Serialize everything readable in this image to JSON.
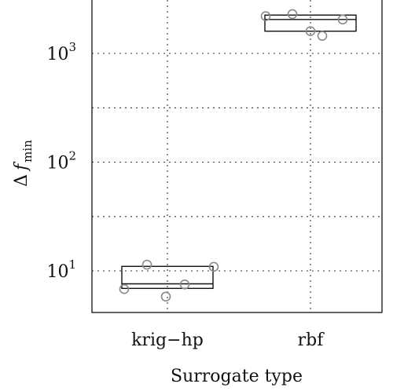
{
  "chart_data": {
    "type": "boxplot",
    "categories": [
      "krig−hp",
      "rbf"
    ],
    "xlabel": "Surrogate type",
    "ylabel": {
      "symbol": "Δ",
      "var": "f",
      "sub": "min"
    },
    "y_scale": "log10",
    "ylim": [
      4.5,
      3200
    ],
    "y_ticks": [
      {
        "value": 10,
        "label_base": "10",
        "label_exp": "1"
      },
      {
        "value": 100,
        "label_base": "10",
        "label_exp": "2"
      },
      {
        "value": 1000,
        "label_base": "10",
        "label_exp": "3"
      }
    ],
    "y_minor_grid": [
      31.6,
      316
    ],
    "grid": true,
    "boxes": [
      {
        "category": "krig−hp",
        "q1": 6.9,
        "median": 7.6,
        "q3": 11.0,
        "points": [
          6.8,
          11.4,
          5.8,
          7.5,
          10.9
        ]
      },
      {
        "category": "rbf",
        "q1": 1600,
        "median": 2050,
        "q3": 2250,
        "points": [
          2200,
          2300,
          1600,
          1450,
          2050
        ]
      }
    ]
  }
}
